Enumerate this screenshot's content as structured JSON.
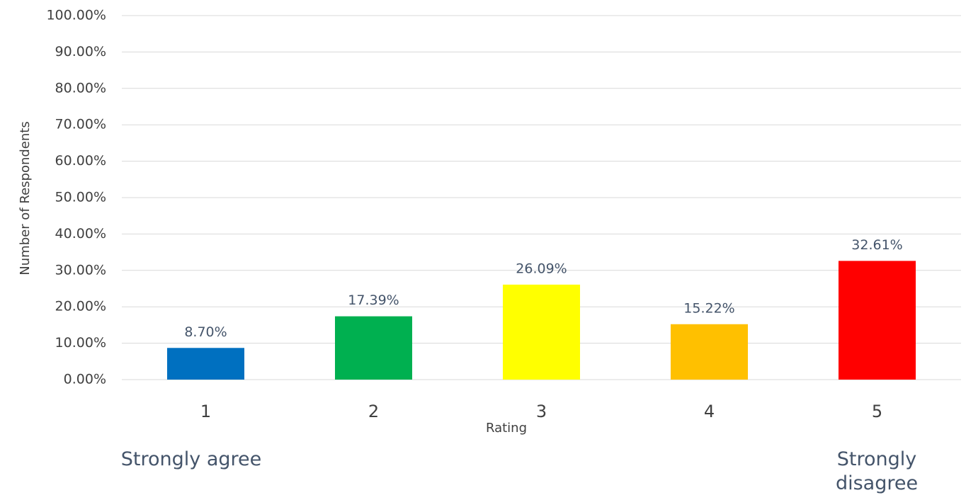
{
  "chart_data": {
    "type": "bar",
    "x_label": "Rating",
    "y_label": "Number of Respondents",
    "categories": [
      "1",
      "2",
      "3",
      "4",
      "5"
    ],
    "values": [
      8.7,
      17.39,
      26.09,
      15.22,
      32.61
    ],
    "value_labels": [
      "8.70%",
      "17.39%",
      "26.09%",
      "15.22%",
      "32.61%"
    ],
    "colors": [
      "#0070c0",
      "#00b050",
      "#ffff00",
      "#ffc000",
      "#ff0000"
    ],
    "ylim": [
      0,
      100
    ],
    "yticks": [
      {
        "value": 0,
        "label": "0.00%"
      },
      {
        "value": 10,
        "label": "10.00%"
      },
      {
        "value": 20,
        "label": "20.00%"
      },
      {
        "value": 30,
        "label": "30.00%"
      },
      {
        "value": 40,
        "label": "40.00%"
      },
      {
        "value": 50,
        "label": "50.00%"
      },
      {
        "value": 60,
        "label": "60.00%"
      },
      {
        "value": 70,
        "label": "70.00%"
      },
      {
        "value": 80,
        "label": "80.00%"
      },
      {
        "value": 90,
        "label": "90.00%"
      },
      {
        "value": 100,
        "label": "100.00%"
      }
    ],
    "grid": true,
    "annotations": [
      "Strongly agree",
      "Strongly disagree"
    ]
  }
}
